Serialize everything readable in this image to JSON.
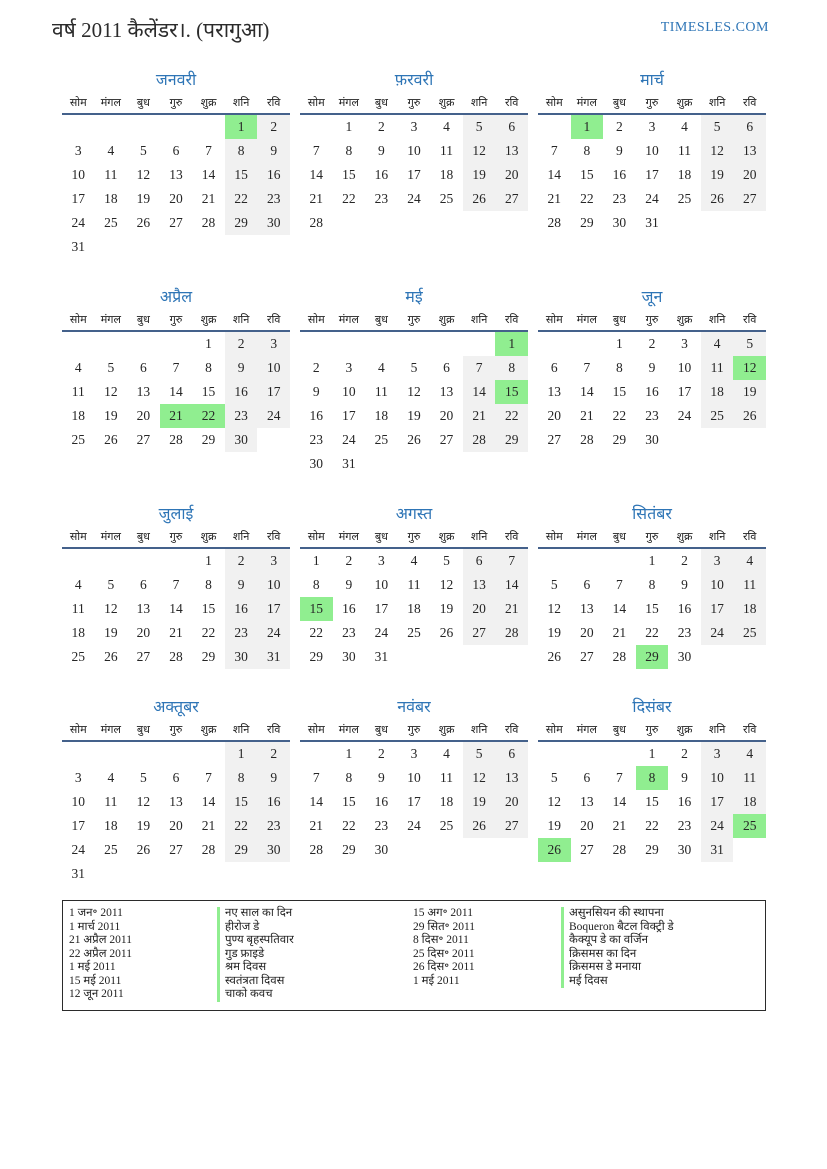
{
  "page": {
    "title": "वर्ष 2011 कैलेंडर।. (परागुआ)",
    "site": "TIMESLES.COM"
  },
  "colors": {
    "accent_blue": "#2e75b6",
    "header_line": "#44618b",
    "holiday_green": "#90ee90",
    "weekend_gray": "#f1f1f1"
  },
  "weekdays": [
    "सोम",
    "मंगल",
    "बुध",
    "गुरु",
    "शुक्र",
    "शनि",
    "रवि"
  ],
  "months": [
    {
      "name": "जनवरी",
      "holidays": [
        1
      ],
      "weeks": [
        [
          "",
          "",
          "",
          "",
          "",
          1,
          2
        ],
        [
          3,
          4,
          5,
          6,
          7,
          8,
          9
        ],
        [
          10,
          11,
          12,
          13,
          14,
          15,
          16
        ],
        [
          17,
          18,
          19,
          20,
          21,
          22,
          23
        ],
        [
          24,
          25,
          26,
          27,
          28,
          29,
          30
        ],
        [
          31,
          "",
          "",
          "",
          "",
          "",
          ""
        ]
      ]
    },
    {
      "name": "फ़रवरी",
      "holidays": [],
      "weeks": [
        [
          "",
          1,
          2,
          3,
          4,
          5,
          6
        ],
        [
          7,
          8,
          9,
          10,
          11,
          12,
          13
        ],
        [
          14,
          15,
          16,
          17,
          18,
          19,
          20
        ],
        [
          21,
          22,
          23,
          24,
          25,
          26,
          27
        ],
        [
          28,
          "",
          "",
          "",
          "",
          "",
          ""
        ]
      ]
    },
    {
      "name": "मार्च",
      "holidays": [
        1
      ],
      "weeks": [
        [
          "",
          1,
          2,
          3,
          4,
          5,
          6
        ],
        [
          7,
          8,
          9,
          10,
          11,
          12,
          13
        ],
        [
          14,
          15,
          16,
          17,
          18,
          19,
          20
        ],
        [
          21,
          22,
          23,
          24,
          25,
          26,
          27
        ],
        [
          28,
          29,
          30,
          31,
          "",
          "",
          ""
        ]
      ]
    },
    {
      "name": "अप्रैल",
      "holidays": [
        21,
        22
      ],
      "weeks": [
        [
          "",
          "",
          "",
          "",
          1,
          2,
          3
        ],
        [
          4,
          5,
          6,
          7,
          8,
          9,
          10
        ],
        [
          11,
          12,
          13,
          14,
          15,
          16,
          17
        ],
        [
          18,
          19,
          20,
          21,
          22,
          23,
          24
        ],
        [
          25,
          26,
          27,
          28,
          29,
          30,
          ""
        ]
      ]
    },
    {
      "name": "मई",
      "holidays": [
        1,
        15
      ],
      "weeks": [
        [
          "",
          "",
          "",
          "",
          "",
          "",
          1
        ],
        [
          2,
          3,
          4,
          5,
          6,
          7,
          8
        ],
        [
          9,
          10,
          11,
          12,
          13,
          14,
          15
        ],
        [
          16,
          17,
          18,
          19,
          20,
          21,
          22
        ],
        [
          23,
          24,
          25,
          26,
          27,
          28,
          29
        ],
        [
          30,
          31,
          "",
          "",
          "",
          "",
          ""
        ]
      ]
    },
    {
      "name": "जून",
      "holidays": [
        12
      ],
      "weeks": [
        [
          "",
          "",
          1,
          2,
          3,
          4,
          5
        ],
        [
          6,
          7,
          8,
          9,
          10,
          11,
          12
        ],
        [
          13,
          14,
          15,
          16,
          17,
          18,
          19
        ],
        [
          20,
          21,
          22,
          23,
          24,
          25,
          26
        ],
        [
          27,
          28,
          29,
          30,
          "",
          "",
          ""
        ]
      ]
    },
    {
      "name": "जुलाई",
      "holidays": [],
      "weeks": [
        [
          "",
          "",
          "",
          "",
          1,
          2,
          3
        ],
        [
          4,
          5,
          6,
          7,
          8,
          9,
          10
        ],
        [
          11,
          12,
          13,
          14,
          15,
          16,
          17
        ],
        [
          18,
          19,
          20,
          21,
          22,
          23,
          24
        ],
        [
          25,
          26,
          27,
          28,
          29,
          30,
          31
        ]
      ]
    },
    {
      "name": "अगस्त",
      "holidays": [
        15
      ],
      "weeks": [
        [
          1,
          2,
          3,
          4,
          5,
          6,
          7
        ],
        [
          8,
          9,
          10,
          11,
          12,
          13,
          14
        ],
        [
          15,
          16,
          17,
          18,
          19,
          20,
          21
        ],
        [
          22,
          23,
          24,
          25,
          26,
          27,
          28
        ],
        [
          29,
          30,
          31,
          "",
          "",
          "",
          ""
        ]
      ]
    },
    {
      "name": "सितंबर",
      "holidays": [
        29
      ],
      "weeks": [
        [
          "",
          "",
          "",
          1,
          2,
          3,
          4
        ],
        [
          5,
          6,
          7,
          8,
          9,
          10,
          11
        ],
        [
          12,
          13,
          14,
          15,
          16,
          17,
          18
        ],
        [
          19,
          20,
          21,
          22,
          23,
          24,
          25
        ],
        [
          26,
          27,
          28,
          29,
          30,
          "",
          ""
        ]
      ]
    },
    {
      "name": "अक्तूबर",
      "holidays": [],
      "weeks": [
        [
          "",
          "",
          "",
          "",
          "",
          1,
          2
        ],
        [
          3,
          4,
          5,
          6,
          7,
          8,
          9
        ],
        [
          10,
          11,
          12,
          13,
          14,
          15,
          16
        ],
        [
          17,
          18,
          19,
          20,
          21,
          22,
          23
        ],
        [
          24,
          25,
          26,
          27,
          28,
          29,
          30
        ],
        [
          31,
          "",
          "",
          "",
          "",
          "",
          ""
        ]
      ]
    },
    {
      "name": "नवंबर",
      "holidays": [],
      "weeks": [
        [
          "",
          1,
          2,
          3,
          4,
          5,
          6
        ],
        [
          7,
          8,
          9,
          10,
          11,
          12,
          13
        ],
        [
          14,
          15,
          16,
          17,
          18,
          19,
          20
        ],
        [
          21,
          22,
          23,
          24,
          25,
          26,
          27
        ],
        [
          28,
          29,
          30,
          "",
          "",
          "",
          ""
        ]
      ]
    },
    {
      "name": "दिसंबर",
      "holidays": [
        8,
        25,
        26
      ],
      "weeks": [
        [
          "",
          "",
          "",
          1,
          2,
          3,
          4
        ],
        [
          5,
          6,
          7,
          8,
          9,
          10,
          11
        ],
        [
          12,
          13,
          14,
          15,
          16,
          17,
          18
        ],
        [
          19,
          20,
          21,
          22,
          23,
          24,
          25
        ],
        [
          26,
          27,
          28,
          29,
          30,
          31,
          ""
        ]
      ]
    }
  ],
  "legend": {
    "left": [
      {
        "date": "1 जन॰ 2011",
        "name": "नए साल का दिन"
      },
      {
        "date": "1 मार्च 2011",
        "name": "हीरोज डे"
      },
      {
        "date": "21 अप्रैल 2011",
        "name": "पुण्य बृहस्पतिवार"
      },
      {
        "date": "22 अप्रैल 2011",
        "name": "गुड फ्राइडे"
      },
      {
        "date": "1 मई 2011",
        "name": "श्रम दिवस"
      },
      {
        "date": "15 मई 2011",
        "name": "स्वतंत्रता दिवस"
      },
      {
        "date": "12 जून 2011",
        "name": "चाको कवच"
      }
    ],
    "right": [
      {
        "date": "15 अग॰ 2011",
        "name": "असुनसियन की स्थापना"
      },
      {
        "date": "29 सित॰ 2011",
        "name": "Boqueron बैटल विक्ट्री डे"
      },
      {
        "date": "8 दिस॰ 2011",
        "name": "कैक्यूप डे का वर्जिन"
      },
      {
        "date": "25 दिस॰ 2011",
        "name": "क्रिसमस का दिन"
      },
      {
        "date": "26 दिस॰ 2011",
        "name": "क्रिसमस डे मनाया"
      },
      {
        "date": "1 मई 2011",
        "name": "मई दिवस"
      }
    ]
  }
}
